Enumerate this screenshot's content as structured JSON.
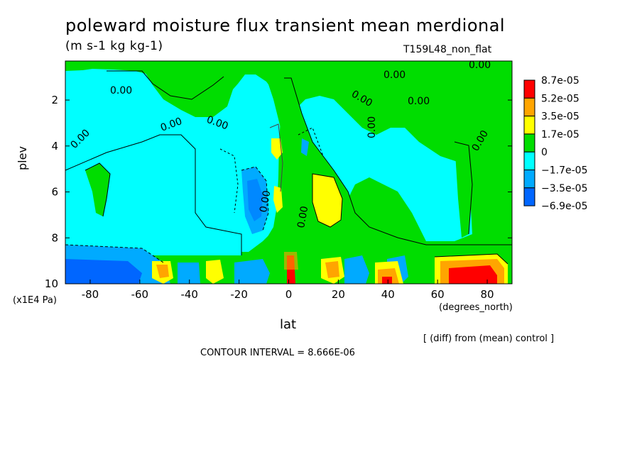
{
  "title": "poleward moisture flux transient mean merdional",
  "units": "(m s-1 kg kg-1)",
  "run_label": "T159L48_non_flat",
  "y_axis": {
    "label": "plev",
    "unit": "(x1E4 Pa)",
    "ticks": [
      2,
      4,
      6,
      8,
      10
    ]
  },
  "x_axis": {
    "label": "lat",
    "unit": "(degrees_north)",
    "ticks": [
      -80,
      -60,
      -40,
      -20,
      0,
      20,
      40,
      60,
      80
    ]
  },
  "annotation": "[ (diff) from (mean) control ]",
  "contour_interval": "CONTOUR INTERVAL = 8.666E-06",
  "contour_labels": [
    "0.00",
    "0.00",
    "0.00",
    "0.00",
    "0.00",
    "0.00",
    "0.00",
    "0.00",
    "0.00",
    "0.00",
    "0.00",
    "0.00"
  ],
  "colors": {
    "levels": [
      "#ff0000",
      "#ffa500",
      "#ffff00",
      "#00dd00",
      "#00ffff",
      "#00aaff",
      "#0066ff"
    ]
  },
  "chart_data": {
    "type": "heatmap",
    "title": "poleward moisture flux transient mean merdional",
    "subtitle": "(m s-1 kg kg-1)",
    "xlabel": "lat",
    "ylabel": "plev",
    "xlim": [
      -90,
      90
    ],
    "ylim": [
      10,
      0.3
    ],
    "colorbar": {
      "labels": [
        "8.7e-05",
        "5.2e-05",
        "3.5e-05",
        "1.7e-05",
        "0",
        "−1.7e-05",
        "−3.5e-05",
        "−6.9e-05"
      ],
      "colors": [
        "#ff0000",
        "#ffa500",
        "#ffff00",
        "#00dd00",
        "#00ffff",
        "#00aaff",
        "#0066ff"
      ]
    }
  }
}
